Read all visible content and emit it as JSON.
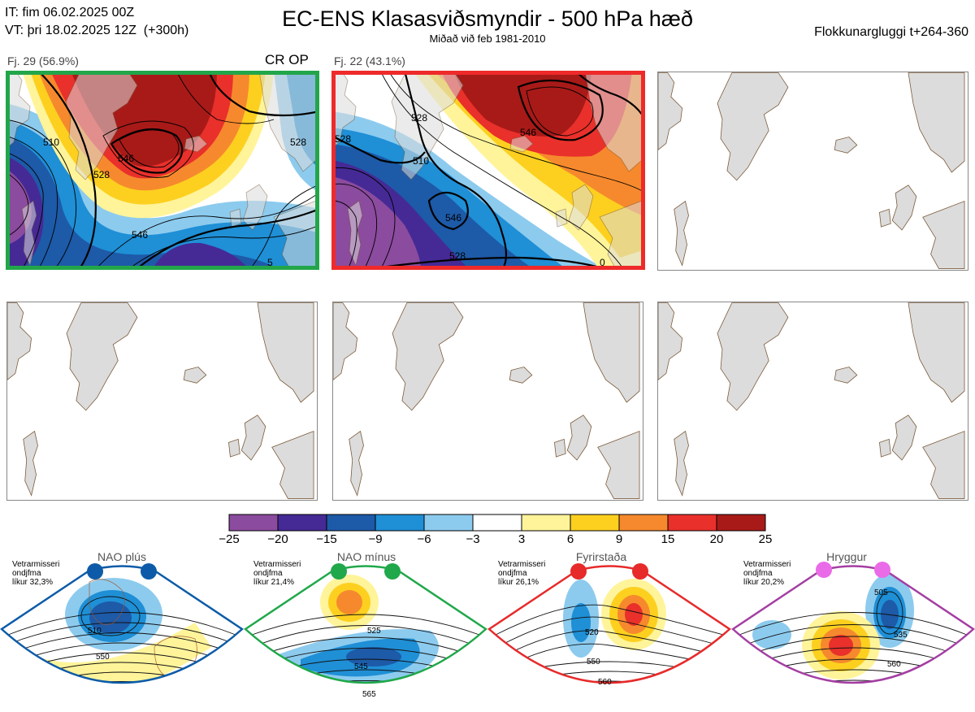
{
  "header": {
    "it_line": "IT: fim 06.02.2025 00Z",
    "vt_line": "VT: þri 18.02.2025 12Z  (+300h)",
    "title": "EC-ENS Klasasviðsmyndir - 500 hPa hæð",
    "subtitle": "Miðað við feb 1981-2010",
    "window": "Flokkunargluggi t+264-360"
  },
  "panels": [
    {
      "label": "Fj. 29 (56.9%)",
      "tag": "CR OP",
      "border_color": "#22a64a",
      "contours": [
        "510",
        "528",
        "546",
        "528",
        "546",
        "5"
      ]
    },
    {
      "label": "Fj. 22 (43.1%)",
      "tag": "",
      "border_color": "#ee2a2a",
      "contours": [
        "528",
        "546",
        "510",
        "528",
        "546",
        "528",
        "0"
      ]
    }
  ],
  "colorbar": {
    "ticks": [
      "−25",
      "−20",
      "−15",
      "−9",
      "−6",
      "−3",
      "3",
      "6",
      "9",
      "15",
      "20",
      "25"
    ],
    "colors": [
      "#8b4b9e",
      "#452a96",
      "#1d5aa8",
      "#1f8fd6",
      "#8ccbee",
      "#ffffff",
      "#fff49a",
      "#fdd020",
      "#f6892d",
      "#e9302b",
      "#a81a18"
    ]
  },
  "regimes": [
    {
      "title": "NAO plús",
      "note": [
        "Vetrarmisseri",
        "ondjfma",
        "líkur 32,3%"
      ],
      "color": "#0d5ba8",
      "labels": [
        "510",
        "550"
      ]
    },
    {
      "title": "NAO mínus",
      "note": [
        "Vetrarmisseri",
        "ondjfma",
        "líkur 21,4%"
      ],
      "color": "#20a84a",
      "labels": [
        "525",
        "545",
        "565"
      ]
    },
    {
      "title": "Fyrirstaða",
      "note": [
        "Vetrarmisseri",
        "ondjfma",
        "líkur 26,1%"
      ],
      "color": "#e72a2a",
      "labels": [
        "520",
        "550",
        "560"
      ]
    },
    {
      "title": "Hryggur",
      "note": [
        "Vetrarmisseri",
        "ondjfma",
        "líkur 20,2%"
      ],
      "color": "#a43ea3",
      "labels": [
        "505",
        "535",
        "560"
      ]
    }
  ]
}
